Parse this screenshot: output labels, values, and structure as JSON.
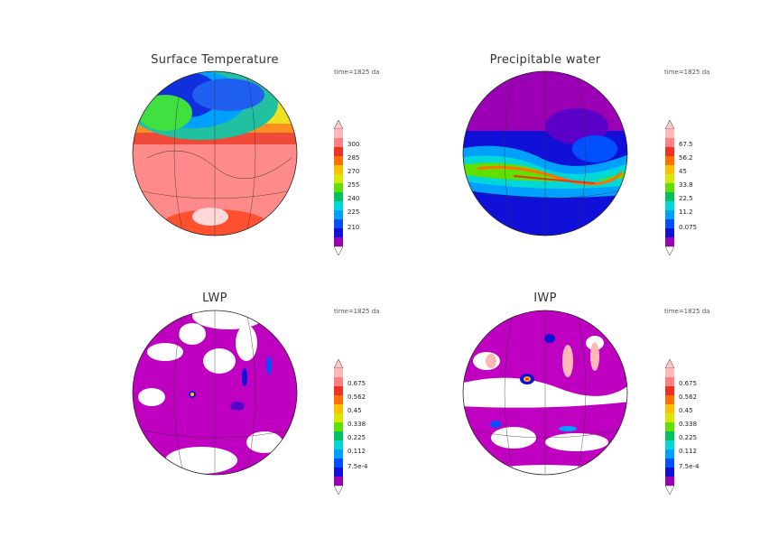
{
  "time_label": "time=1825 da",
  "panels": [
    {
      "title": "Surface Temperature",
      "colorbar": [
        "300",
        "285",
        "270",
        "255",
        "240",
        "225",
        "210"
      ]
    },
    {
      "title": "Precipitable water",
      "colorbar": [
        "67.5",
        "56.2",
        "45",
        "33.8",
        "22.5",
        "11.2",
        "0.075"
      ]
    },
    {
      "title": "LWP",
      "colorbar": [
        "0.675",
        "0.562",
        "0.45",
        "0.338",
        "0.225",
        "0.112",
        "7.5e-4"
      ]
    },
    {
      "title": "IWP",
      "colorbar": [
        "0.675",
        "0.562",
        "0.45",
        "0.338",
        "0.225",
        "0.112",
        "7.5e-4"
      ]
    }
  ],
  "colors": {
    "palette": [
      "#9b00b4",
      "#5a00c8",
      "#1010d8",
      "#0050ff",
      "#00a0ff",
      "#00d8d8",
      "#00c060",
      "#60e000",
      "#d8e800",
      "#ffc000",
      "#ff7000",
      "#f03020",
      "#ff8080",
      "#ffb8b8"
    ]
  }
}
